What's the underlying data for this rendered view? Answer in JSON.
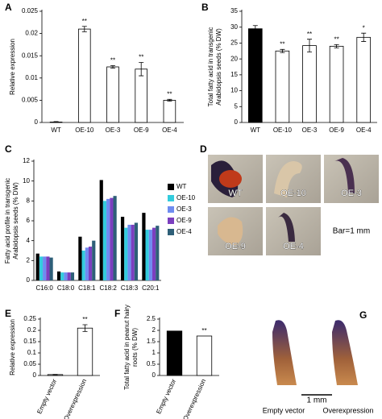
{
  "chart_data": [
    {
      "type": "bar",
      "panel": "A",
      "y_label": [
        "Relative expression"
      ],
      "categories": [
        "WT",
        "OE-10",
        "OE-3",
        "OE-9",
        "OE-4"
      ],
      "values": [
        0.0001,
        0.021,
        0.0125,
        0.012,
        0.005
      ],
      "errors": [
        0.0001,
        0.0006,
        0.0003,
        0.0015,
        0.0002
      ],
      "colors": [
        "#ffffff",
        "#ffffff",
        "#ffffff",
        "#ffffff",
        "#ffffff"
      ],
      "annotations": [
        null,
        "**",
        "**",
        "**",
        "**"
      ],
      "ylim": [
        0,
        0.025
      ],
      "yticks": [
        0,
        0.005,
        0.01,
        0.015,
        0.02,
        0.025
      ]
    },
    {
      "type": "bar",
      "panel": "B",
      "y_label": [
        "Total fatty acid in transgenic",
        "Arabidopsis seeds (% DW)"
      ],
      "categories": [
        "WT",
        "OE-10",
        "OE-3",
        "OE-9",
        "OE-4"
      ],
      "values": [
        29.5,
        22.5,
        24.2,
        24,
        26.8
      ],
      "errors": [
        1,
        0.5,
        2,
        0.5,
        1.3
      ],
      "colors": [
        "#000000",
        "#ffffff",
        "#ffffff",
        "#ffffff",
        "#ffffff"
      ],
      "annotations": [
        null,
        "**",
        "**",
        "**",
        "*"
      ],
      "ylim": [
        0,
        35
      ],
      "yticks": [
        0,
        5,
        10,
        15,
        20,
        25,
        30,
        35
      ]
    },
    {
      "type": "bar",
      "panel": "C",
      "y_label": [
        "Fatty acid profile in transgenic",
        "Arabidopsis seeds (% DW)"
      ],
      "categories": [
        "C16:0",
        "C18:0",
        "C18:1",
        "C18:2",
        "C18:3",
        "C20:1"
      ],
      "series": [
        {
          "name": "WT",
          "color": "#000000",
          "values": [
            2.7,
            0.9,
            4.4,
            10.1,
            6.4,
            6.8
          ]
        },
        {
          "name": "OE-10",
          "color": "#33ccdd",
          "values": [
            2.4,
            0.8,
            3.0,
            8.0,
            5.3,
            5.1
          ]
        },
        {
          "name": "OE-3",
          "color": "#6f8cf0",
          "values": [
            2.4,
            0.8,
            3.3,
            8.2,
            5.6,
            5.1
          ]
        },
        {
          "name": "OE-9",
          "color": "#7b3fbf",
          "values": [
            2.4,
            0.8,
            3.4,
            8.3,
            5.6,
            5.3
          ]
        },
        {
          "name": "OE-4",
          "color": "#2e5f78",
          "values": [
            2.3,
            0.8,
            4.0,
            8.5,
            5.8,
            5.5
          ]
        }
      ],
      "ylim": [
        0,
        12
      ],
      "yticks": [
        0,
        2,
        4,
        6,
        8,
        10,
        12
      ]
    },
    {
      "type": "bar",
      "panel": "E",
      "y_label": [
        "Relative expression"
      ],
      "categories": [
        "Empty vector",
        "Overexpression"
      ],
      "values": [
        0.004,
        0.21
      ],
      "errors": [
        0.001,
        0.015
      ],
      "colors": [
        "#ffffff",
        "#ffffff"
      ],
      "annotations": [
        null,
        "**"
      ],
      "ylim": [
        0,
        0.25
      ],
      "yticks": [
        0,
        0.05,
        0.1,
        0.15,
        0.2,
        0.25
      ]
    },
    {
      "type": "bar",
      "panel": "F",
      "y_label": [
        "Total fatty acid in peanut hairy",
        "roots (% DW)"
      ],
      "categories": [
        "Empty vector",
        "Overexpression"
      ],
      "values": [
        1.97,
        1.75
      ],
      "colors": [
        "#000000",
        "#ffffff"
      ],
      "annotations": [
        null,
        "**"
      ],
      "ylim": [
        0,
        2.5
      ],
      "yticks": [
        0,
        0.5,
        1,
        1.5,
        2,
        2.5
      ]
    }
  ],
  "image_panels": {
    "D": {
      "panel": "D",
      "labels": [
        "WT",
        "OE-10",
        "OE-3",
        "OE-9",
        "OE-4"
      ],
      "scale": "Bar=1 mm"
    },
    "G": {
      "panel": "G",
      "labels": [
        "Empty vector",
        "Overexpression"
      ],
      "scale": "1 mm"
    }
  }
}
